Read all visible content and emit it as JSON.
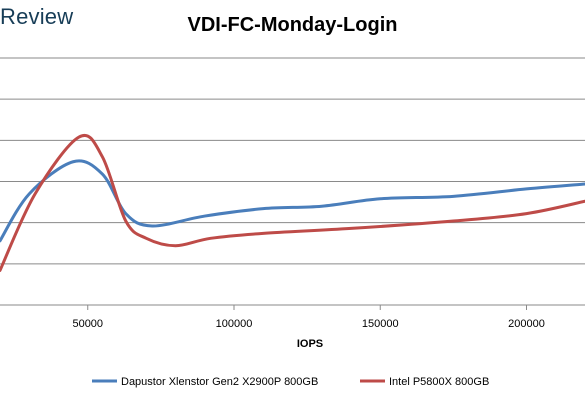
{
  "brand": {
    "text": "Review"
  },
  "chart_data": {
    "type": "line",
    "title": "VDI-FC-Monday-Login",
    "xlabel": "IOPS",
    "ylabel": "",
    "xlim": [
      20000,
      220000
    ],
    "x_ticks": [
      50000,
      100000,
      150000,
      200000
    ],
    "x_tick_labels": [
      "50000",
      "100000",
      "150000",
      "200000"
    ],
    "y_gridlines": 6,
    "grid": true,
    "legend_position": "bottom",
    "series": [
      {
        "name": "Dapustor Xlenstor Gen2 X2900P 800GB",
        "color": "#4a7ebb",
        "points": [
          [
            20000,
            0.74
          ],
          [
            30000,
            0.55
          ],
          [
            45000,
            0.42
          ],
          [
            55000,
            0.47
          ],
          [
            63000,
            0.63
          ],
          [
            72000,
            0.68
          ],
          [
            90000,
            0.64
          ],
          [
            110000,
            0.61
          ],
          [
            130000,
            0.6
          ],
          [
            150000,
            0.57
          ],
          [
            175000,
            0.56
          ],
          [
            200000,
            0.53
          ],
          [
            220000,
            0.51
          ]
        ]
      },
      {
        "name": "Intel P5800X 800GB",
        "color": "#be4b48",
        "points": [
          [
            20000,
            0.86
          ],
          [
            32000,
            0.55
          ],
          [
            47000,
            0.32
          ],
          [
            55000,
            0.4
          ],
          [
            63000,
            0.66
          ],
          [
            70000,
            0.73
          ],
          [
            80000,
            0.76
          ],
          [
            92000,
            0.73
          ],
          [
            110000,
            0.71
          ],
          [
            140000,
            0.69
          ],
          [
            175000,
            0.66
          ],
          [
            200000,
            0.63
          ],
          [
            220000,
            0.58
          ]
        ]
      }
    ]
  }
}
